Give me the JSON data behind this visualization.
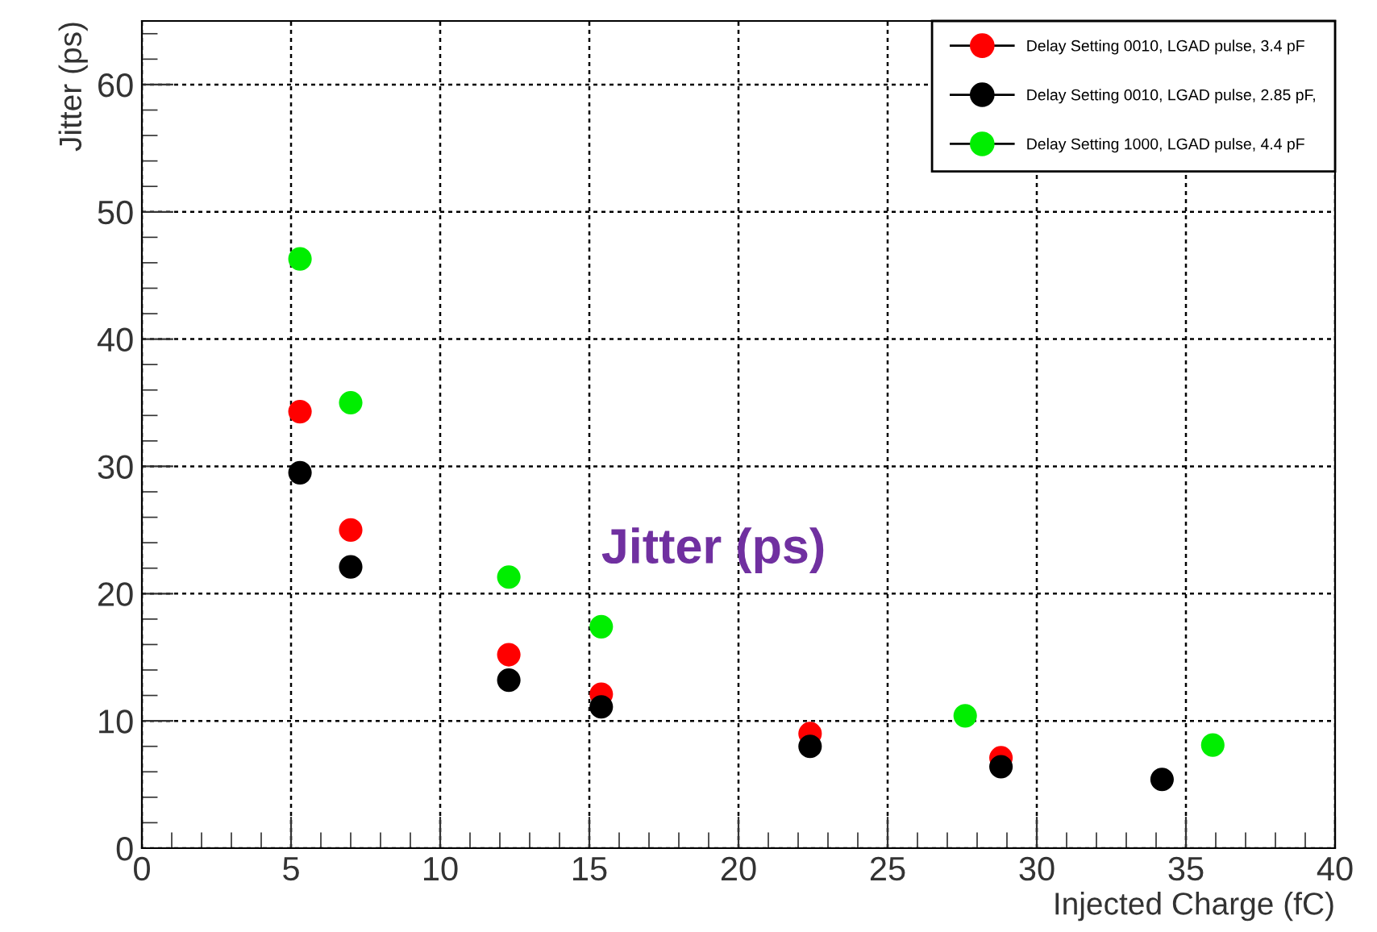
{
  "chart_data": {
    "type": "scatter",
    "xlabel": "Injected Charge (fC)",
    "ylabel": "Jitter (ps)",
    "xlim": [
      0,
      40
    ],
    "xticks": [
      0,
      5,
      10,
      15,
      20,
      25,
      30,
      35,
      40
    ],
    "ylim": [
      0,
      65
    ],
    "yticks": [
      0,
      10,
      20,
      30,
      40,
      50,
      60
    ],
    "grid": true,
    "legend": "top right",
    "marker": "circle",
    "annotations": [
      "Jitter (ps)"
    ],
    "series": [
      {
        "name": "Delay Setting 0010, LGAD pulse, 3.4 pF",
        "color": "#ff0000",
        "x": [
          5.3,
          7.0,
          12.3,
          15.4,
          22.4,
          28.8
        ],
        "values": [
          34.3,
          25.0,
          15.2,
          12.1,
          9.0,
          7.1
        ]
      },
      {
        "name": "Delay Setting 0010, LGAD pulse, 2.85 pF,",
        "color": "#000000",
        "x": [
          5.3,
          7.0,
          12.3,
          15.4,
          22.4,
          28.8,
          34.2
        ],
        "values": [
          29.5,
          22.1,
          13.2,
          11.1,
          8.0,
          6.4,
          5.4
        ]
      },
      {
        "name": "Delay Setting 1000, LGAD pulse, 4.4 pF",
        "color": "#00ee00",
        "x": [
          5.3,
          7.0,
          12.3,
          15.4,
          27.6,
          35.9
        ],
        "values": [
          46.3,
          35.0,
          21.3,
          17.4,
          10.4,
          8.1
        ]
      }
    ]
  }
}
